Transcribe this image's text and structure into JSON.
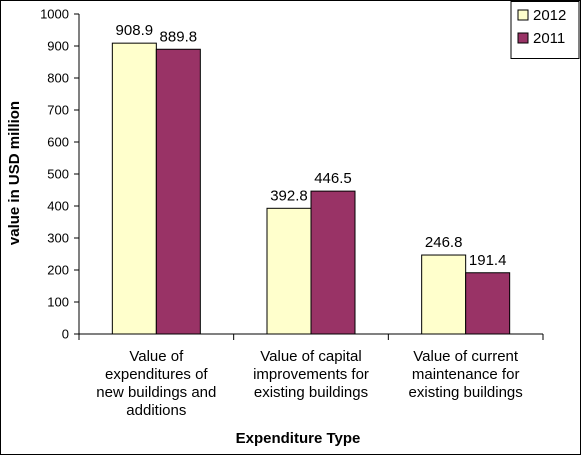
{
  "chart_data": {
    "type": "bar",
    "title": "",
    "xlabel": "Expenditure Type",
    "ylabel": "value in USD million",
    "ylim": [
      0,
      1000
    ],
    "y_ticks": [
      0,
      100,
      200,
      300,
      400,
      500,
      600,
      700,
      800,
      900,
      1000
    ],
    "grid": false,
    "legend_position": "top-right",
    "categories": [
      [
        "Value of",
        "expenditures of",
        "new buildings and",
        "additions"
      ],
      [
        "Value of capital",
        "improvements for",
        "existing buildings"
      ],
      [
        "Value of current",
        "maintenance for",
        "existing buildings"
      ]
    ],
    "series": [
      {
        "name": "2012",
        "color": "#FFFFCC",
        "values": [
          908.9,
          392.8,
          246.8
        ],
        "labels": [
          "908.9",
          "392.8",
          "246.8"
        ]
      },
      {
        "name": "2011",
        "color": "#993366",
        "values": [
          889.8,
          446.5,
          191.4
        ],
        "labels": [
          "889.8",
          "446.5",
          "191.4"
        ]
      }
    ]
  }
}
